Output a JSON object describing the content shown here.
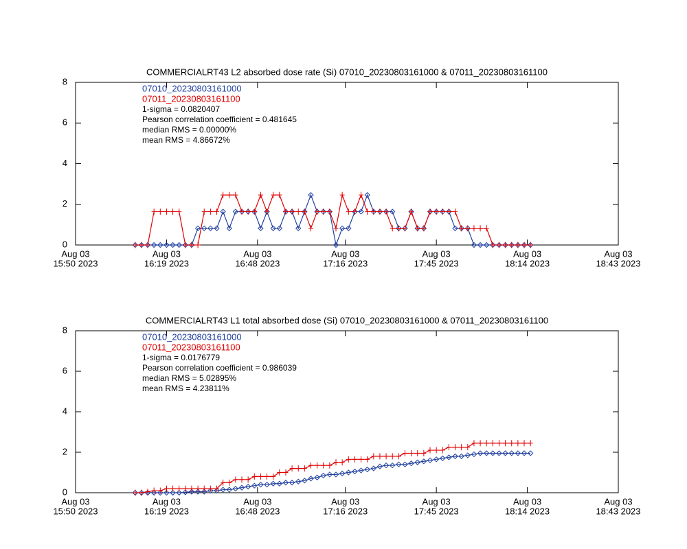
{
  "chart_data": [
    {
      "type": "line",
      "title": "COMMERCIALRT43 L2 absorbed dose rate (Si) 07010_20230803161000 & 07011_20230803161100",
      "x": [
        "2023-08-03 16:09",
        "2023-08-03 16:11",
        "2023-08-03 16:13",
        "2023-08-03 16:15",
        "2023-08-03 16:17",
        "2023-08-03 16:19",
        "2023-08-03 16:21",
        "2023-08-03 16:23",
        "2023-08-03 16:25",
        "2023-08-03 16:27",
        "2023-08-03 16:29",
        "2023-08-03 16:31",
        "2023-08-03 16:33",
        "2023-08-03 16:35",
        "2023-08-03 16:37",
        "2023-08-03 16:39",
        "2023-08-03 16:41",
        "2023-08-03 16:43",
        "2023-08-03 16:45",
        "2023-08-03 16:47",
        "2023-08-03 16:49",
        "2023-08-03 16:51",
        "2023-08-03 16:53",
        "2023-08-03 16:55",
        "2023-08-03 16:57",
        "2023-08-03 16:59",
        "2023-08-03 17:01",
        "2023-08-03 17:03",
        "2023-08-03 17:05",
        "2023-08-03 17:07",
        "2023-08-03 17:09",
        "2023-08-03 17:11",
        "2023-08-03 17:13",
        "2023-08-03 17:15",
        "2023-08-03 17:17",
        "2023-08-03 17:19",
        "2023-08-03 17:21",
        "2023-08-03 17:23",
        "2023-08-03 17:25",
        "2023-08-03 17:27",
        "2023-08-03 17:29",
        "2023-08-03 17:31",
        "2023-08-03 17:33",
        "2023-08-03 17:35",
        "2023-08-03 17:37",
        "2023-08-03 17:39",
        "2023-08-03 17:41",
        "2023-08-03 17:43",
        "2023-08-03 17:45",
        "2023-08-03 17:47",
        "2023-08-03 17:49",
        "2023-08-03 17:51",
        "2023-08-03 17:53",
        "2023-08-03 17:55",
        "2023-08-03 17:57",
        "2023-08-03 17:59",
        "2023-08-03 18:01",
        "2023-08-03 18:03",
        "2023-08-03 18:05",
        "2023-08-03 18:07",
        "2023-08-03 18:09",
        "2023-08-03 18:11",
        "2023-08-03 18:13",
        "2023-08-03 18:15"
      ],
      "series": [
        {
          "name": "07010_20230803161000",
          "color": "#2040a0",
          "marker": "diamond",
          "values": [
            0,
            0,
            0,
            0,
            0,
            0,
            0,
            0,
            0,
            0,
            0.82,
            0.82,
            0.82,
            0.82,
            1.64,
            0.82,
            1.64,
            1.64,
            1.64,
            1.64,
            0.82,
            1.64,
            0.82,
            0.82,
            1.64,
            1.64,
            0.82,
            1.64,
            2.46,
            1.64,
            1.64,
            1.64,
            0,
            0.82,
            0.82,
            1.64,
            1.64,
            2.46,
            1.64,
            1.64,
            1.64,
            1.64,
            0.82,
            0.82,
            1.64,
            0.82,
            0.82,
            1.64,
            1.64,
            1.64,
            1.64,
            0.82,
            0.82,
            0.82,
            0,
            0,
            0,
            0,
            0,
            0,
            0,
            0,
            0,
            0
          ]
        },
        {
          "name": "07011_20230803161100",
          "color": "#e00000",
          "marker": "plus",
          "values": [
            0,
            0,
            0,
            1.64,
            1.64,
            1.64,
            1.64,
            1.64,
            0,
            0,
            0,
            1.64,
            1.64,
            1.64,
            2.46,
            2.46,
            2.46,
            1.64,
            1.64,
            1.64,
            2.46,
            1.64,
            2.46,
            2.46,
            1.64,
            1.64,
            1.64,
            1.64,
            0.82,
            1.64,
            1.64,
            1.64,
            0.82,
            2.46,
            1.64,
            1.64,
            2.46,
            1.64,
            1.64,
            1.64,
            1.64,
            0.82,
            0.82,
            0.82,
            1.64,
            0.82,
            0.82,
            1.64,
            1.64,
            1.64,
            1.64,
            1.64,
            0.82,
            0.82,
            0.82,
            0.82,
            0.82,
            0,
            0,
            0,
            0,
            0,
            0,
            0
          ]
        }
      ],
      "annotations": [
        "1-sigma = 0.0820407",
        "Pearson correlation coefficient = 0.481645",
        "median RMS = 0.00000%",
        "mean RMS = 4.86672%"
      ],
      "xlim": [
        "2023-08-03 15:50",
        "2023-08-03 18:43"
      ],
      "xticks": [
        {
          "value": "2023-08-03 15:50",
          "label": [
            "Aug 03",
            "15:50 2023"
          ]
        },
        {
          "value": "2023-08-03 16:19",
          "label": [
            "Aug 03",
            "16:19 2023"
          ]
        },
        {
          "value": "2023-08-03 16:48",
          "label": [
            "Aug 03",
            "16:48 2023"
          ]
        },
        {
          "value": "2023-08-03 17:16",
          "label": [
            "Aug 03",
            "17:16 2023"
          ]
        },
        {
          "value": "2023-08-03 17:45",
          "label": [
            "Aug 03",
            "17:45 2023"
          ]
        },
        {
          "value": "2023-08-03 18:14",
          "label": [
            "Aug 03",
            "18:14 2023"
          ]
        },
        {
          "value": "2023-08-03 18:43",
          "label": [
            "Aug 03",
            "18:43 2023"
          ]
        }
      ],
      "ylim": [
        0,
        8
      ],
      "yticks": [
        0,
        2,
        4,
        6,
        8
      ]
    },
    {
      "type": "line",
      "title": "COMMERCIALRT43 L1 total absorbed dose (Si) 07010_20230803161000 & 07011_20230803161100",
      "x": [
        "2023-08-03 16:09",
        "2023-08-03 16:11",
        "2023-08-03 16:13",
        "2023-08-03 16:15",
        "2023-08-03 16:17",
        "2023-08-03 16:19",
        "2023-08-03 16:21",
        "2023-08-03 16:23",
        "2023-08-03 16:25",
        "2023-08-03 16:27",
        "2023-08-03 16:29",
        "2023-08-03 16:31",
        "2023-08-03 16:33",
        "2023-08-03 16:35",
        "2023-08-03 16:37",
        "2023-08-03 16:39",
        "2023-08-03 16:41",
        "2023-08-03 16:43",
        "2023-08-03 16:45",
        "2023-08-03 16:47",
        "2023-08-03 16:49",
        "2023-08-03 16:51",
        "2023-08-03 16:53",
        "2023-08-03 16:55",
        "2023-08-03 16:57",
        "2023-08-03 16:59",
        "2023-08-03 17:01",
        "2023-08-03 17:03",
        "2023-08-03 17:05",
        "2023-08-03 17:07",
        "2023-08-03 17:09",
        "2023-08-03 17:11",
        "2023-08-03 17:13",
        "2023-08-03 17:15",
        "2023-08-03 17:17",
        "2023-08-03 17:19",
        "2023-08-03 17:21",
        "2023-08-03 17:23",
        "2023-08-03 17:25",
        "2023-08-03 17:27",
        "2023-08-03 17:29",
        "2023-08-03 17:31",
        "2023-08-03 17:33",
        "2023-08-03 17:35",
        "2023-08-03 17:37",
        "2023-08-03 17:39",
        "2023-08-03 17:41",
        "2023-08-03 17:43",
        "2023-08-03 17:45",
        "2023-08-03 17:47",
        "2023-08-03 17:49",
        "2023-08-03 17:51",
        "2023-08-03 17:53",
        "2023-08-03 17:55",
        "2023-08-03 17:57",
        "2023-08-03 17:59",
        "2023-08-03 18:01",
        "2023-08-03 18:03",
        "2023-08-03 18:05",
        "2023-08-03 18:07",
        "2023-08-03 18:09",
        "2023-08-03 18:11",
        "2023-08-03 18:13",
        "2023-08-03 18:15"
      ],
      "series": [
        {
          "name": "07010_20230803161000",
          "color": "#2040a0",
          "marker": "diamond",
          "values": [
            0,
            0,
            0,
            0,
            0,
            0,
            0,
            0,
            0.02,
            0.05,
            0.05,
            0.05,
            0.1,
            0.1,
            0.15,
            0.15,
            0.2,
            0.25,
            0.3,
            0.35,
            0.4,
            0.4,
            0.45,
            0.45,
            0.5,
            0.5,
            0.55,
            0.6,
            0.7,
            0.75,
            0.85,
            0.9,
            0.9,
            0.95,
            1.0,
            1.05,
            1.1,
            1.15,
            1.2,
            1.3,
            1.35,
            1.35,
            1.4,
            1.4,
            1.45,
            1.5,
            1.55,
            1.6,
            1.65,
            1.7,
            1.75,
            1.8,
            1.8,
            1.85,
            1.9,
            1.95,
            1.95,
            1.95,
            1.95,
            1.95,
            1.95,
            1.95,
            1.95,
            1.95
          ]
        },
        {
          "name": "07011_20230803161100",
          "color": "#e00000",
          "marker": "plus",
          "values": [
            0,
            0,
            0.05,
            0.1,
            0.1,
            0.2,
            0.2,
            0.2,
            0.2,
            0.2,
            0.2,
            0.2,
            0.2,
            0.2,
            0.5,
            0.5,
            0.65,
            0.65,
            0.65,
            0.8,
            0.8,
            0.8,
            0.8,
            1.0,
            1.0,
            1.2,
            1.2,
            1.2,
            1.35,
            1.35,
            1.35,
            1.35,
            1.5,
            1.5,
            1.65,
            1.65,
            1.65,
            1.65,
            1.8,
            1.8,
            1.8,
            1.8,
            1.8,
            1.95,
            1.95,
            1.95,
            1.95,
            2.1,
            2.1,
            2.1,
            2.25,
            2.25,
            2.25,
            2.25,
            2.45,
            2.45,
            2.45,
            2.45,
            2.45,
            2.45,
            2.45,
            2.45,
            2.45,
            2.45
          ]
        }
      ],
      "annotations": [
        "1-sigma = 0.0176779",
        "Pearson correlation coefficient = 0.986039",
        "median RMS = 5.02895%",
        "mean RMS = 4.23811%"
      ],
      "xlim": [
        "2023-08-03 15:50",
        "2023-08-03 18:43"
      ],
      "xticks": [
        {
          "value": "2023-08-03 15:50",
          "label": [
            "Aug 03",
            "15:50 2023"
          ]
        },
        {
          "value": "2023-08-03 16:19",
          "label": [
            "Aug 03",
            "16:19 2023"
          ]
        },
        {
          "value": "2023-08-03 16:48",
          "label": [
            "Aug 03",
            "16:48 2023"
          ]
        },
        {
          "value": "2023-08-03 17:16",
          "label": [
            "Aug 03",
            "17:16 2023"
          ]
        },
        {
          "value": "2023-08-03 17:45",
          "label": [
            "Aug 03",
            "17:45 2023"
          ]
        },
        {
          "value": "2023-08-03 18:14",
          "label": [
            "Aug 03",
            "18:14 2023"
          ]
        },
        {
          "value": "2023-08-03 18:43",
          "label": [
            "Aug 03",
            "18:43 2023"
          ]
        }
      ],
      "ylim": [
        0,
        8
      ],
      "yticks": [
        0,
        2,
        4,
        6,
        8
      ]
    }
  ]
}
